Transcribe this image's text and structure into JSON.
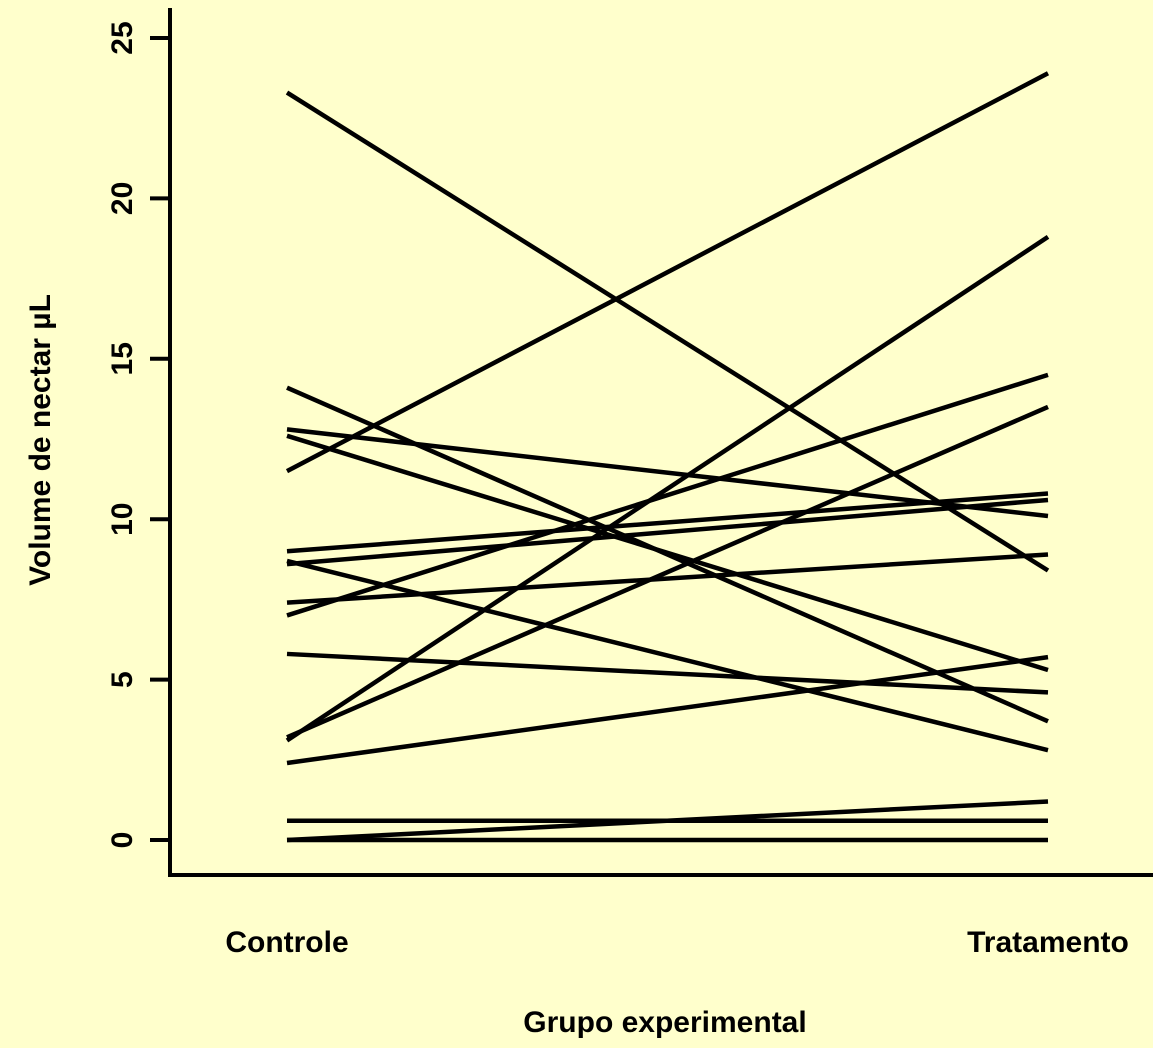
{
  "chart_data": {
    "type": "line",
    "title": "",
    "xlabel": "Grupo experimental",
    "ylabel": "Volume de nectar µL",
    "categories": [
      "Controle",
      "Tratamento"
    ],
    "ylim": [
      0,
      25
    ],
    "yticks": [
      0,
      5,
      10,
      15,
      20,
      25
    ],
    "grid": false,
    "legend": "none",
    "colors": {
      "background": "#FFFFCC",
      "line": "#000000"
    },
    "series": [
      {
        "values": [
          23.3,
          8.4
        ]
      },
      {
        "values": [
          11.5,
          23.9
        ]
      },
      {
        "values": [
          14.1,
          3.7
        ]
      },
      {
        "values": [
          12.8,
          10.1
        ]
      },
      {
        "values": [
          12.6,
          5.3
        ]
      },
      {
        "values": [
          9.0,
          10.8
        ]
      },
      {
        "values": [
          8.7,
          2.8
        ]
      },
      {
        "values": [
          8.6,
          10.6
        ]
      },
      {
        "values": [
          7.4,
          8.9
        ]
      },
      {
        "values": [
          7.0,
          14.5
        ]
      },
      {
        "values": [
          5.8,
          4.6
        ]
      },
      {
        "values": [
          3.1,
          18.8
        ]
      },
      {
        "values": [
          3.2,
          13.5
        ]
      },
      {
        "values": [
          2.4,
          5.7
        ]
      },
      {
        "values": [
          0.6,
          0.6
        ]
      },
      {
        "values": [
          0.0,
          1.2
        ]
      },
      {
        "values": [
          0.0,
          0.0
        ]
      }
    ]
  }
}
